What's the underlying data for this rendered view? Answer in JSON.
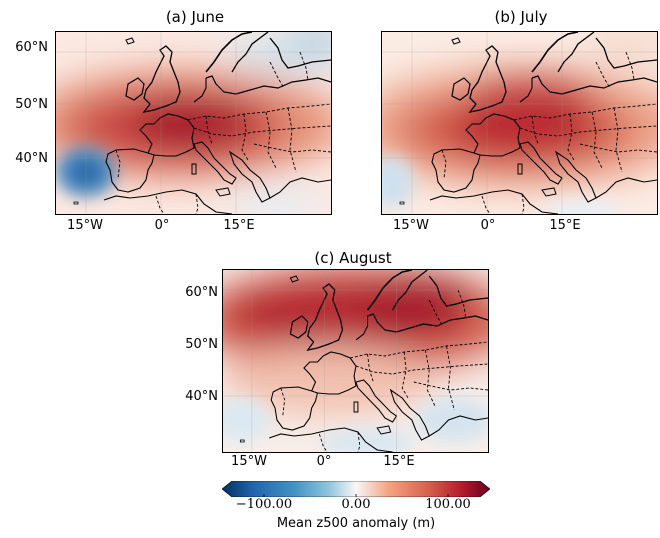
{
  "panels": [
    {
      "title": "(a) June",
      "lat_labels": [
        "60°N",
        "50°N",
        "40°N"
      ],
      "lon_labels": [
        "15°W",
        "0°",
        "15°E"
      ]
    },
    {
      "title": "(b) July",
      "lat_labels": [],
      "lon_labels": [
        "15°W",
        "0°",
        "15°E"
      ]
    },
    {
      "title": "(c) August",
      "lat_labels": [
        "60°N",
        "50°N",
        "40°N"
      ],
      "lon_labels": [
        "15°W",
        "0°",
        "15°E"
      ]
    }
  ],
  "colorbar": {
    "ticks": [
      "−100.00",
      "0.00",
      "100.00"
    ],
    "label": "Mean z500 anomaly (m)",
    "colors": {
      "neg": "#2166ac",
      "mid": "#f7f7f7",
      "pos": "#b2182b"
    }
  }
}
